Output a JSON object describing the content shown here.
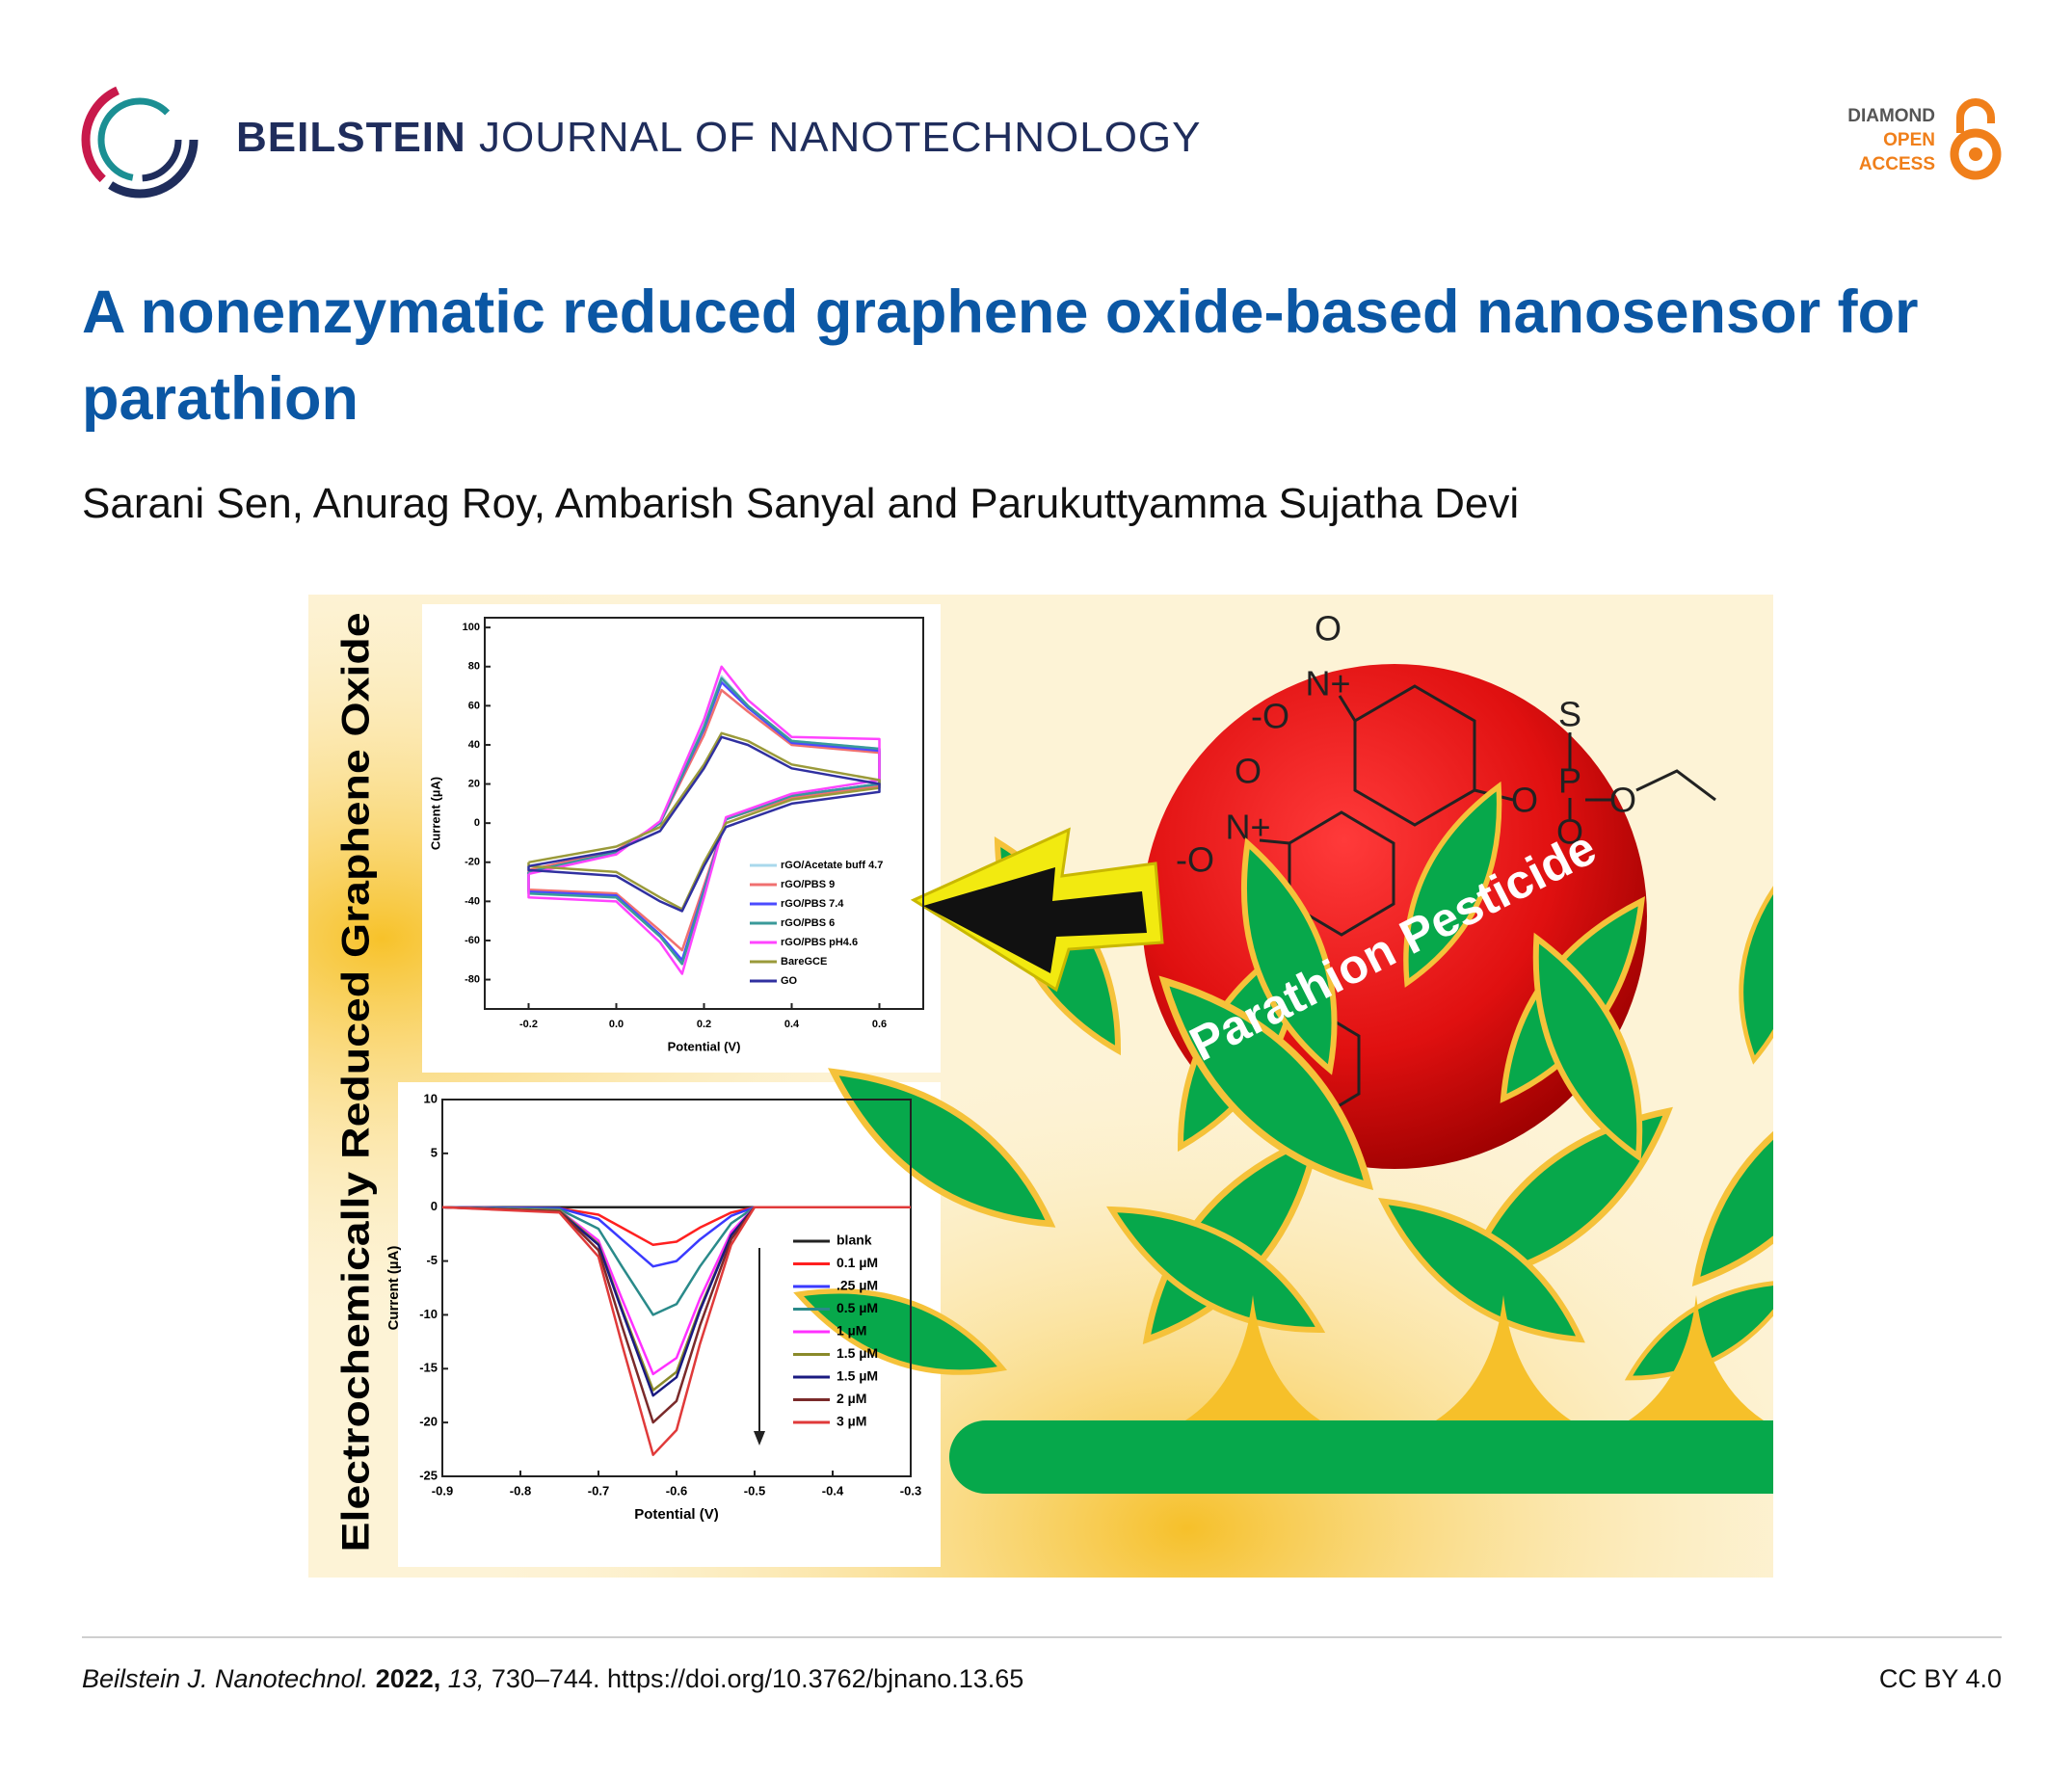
{
  "header": {
    "journal_bold": "BEILSTEIN",
    "journal_rest": "JOURNAL OF NANOTECHNOLOGY",
    "badge": [
      "DIAMOND",
      "OPEN",
      "ACCESS"
    ]
  },
  "title": "A nonenzymatic reduced graphene oxide-based nanosensor for parathion",
  "authors": "Sarani Sen, Anurag Roy, Ambarish Sanyal and Parukuttyamma Sujatha Devi",
  "graphic": {
    "side_label": "Electrochemically Reduced Graphene Oxide",
    "sphere_label": "Parathion Pesticide",
    "molecule_atoms": [
      "O",
      "N+",
      "-O",
      "S",
      "P",
      "O",
      "O",
      "O",
      "O",
      "N+",
      "-O"
    ]
  },
  "chart_data": [
    {
      "type": "line",
      "x_label": "Potential (V)",
      "y_label": "Current (µA)",
      "x": [
        -0.2,
        0,
        0.1,
        0.2,
        0.24,
        0.3,
        0.4,
        0.6,
        0.6,
        0.4,
        0.25,
        0.2,
        0.15,
        0.1,
        0,
        -0.2,
        -0.2
      ],
      "series": [
        {
          "name": "rGO/Acetate buff 4.7",
          "color": "#a9d8ec",
          "values": [
            -25,
            -15,
            0,
            50,
            75,
            60,
            42,
            38,
            20,
            14,
            2,
            -35,
            -72,
            -58,
            -38,
            -35,
            -25
          ]
        },
        {
          "name": "rGO/PBS 9",
          "color": "#f07070",
          "values": [
            -24,
            -14,
            0,
            45,
            68,
            57,
            40,
            36,
            19,
            13,
            2,
            -32,
            -65,
            -55,
            -36,
            -34,
            -24
          ]
        },
        {
          "name": "rGO/PBS 7.4",
          "color": "#4b4bff",
          "values": [
            -25,
            -15,
            0,
            48,
            72,
            59,
            41,
            37,
            20,
            14,
            2,
            -34,
            -70,
            -57,
            -37,
            -35,
            -25
          ]
        },
        {
          "name": "rGO/PBS 6",
          "color": "#3a9a9a",
          "values": [
            -25,
            -15,
            0,
            49,
            74,
            60,
            42,
            38,
            20,
            14,
            2,
            -35,
            -72,
            -58,
            -38,
            -36,
            -25
          ]
        },
        {
          "name": "rGO/PBS pH4.6",
          "color": "#ff44ff",
          "values": [
            -26,
            -16,
            1,
            53,
            80,
            63,
            44,
            43,
            22,
            15,
            3,
            -38,
            -77,
            -61,
            -40,
            -38,
            -26
          ]
        },
        {
          "name": "BareGCE",
          "color": "#9a9a3a",
          "values": [
            -20,
            -12,
            -2,
            30,
            46,
            42,
            30,
            22,
            18,
            12,
            0,
            -20,
            -44,
            -38,
            -25,
            -22,
            -20
          ]
        },
        {
          "name": "GO",
          "color": "#3030a0",
          "values": [
            -22,
            -14,
            -4,
            28,
            44,
            40,
            28,
            20,
            16,
            10,
            -2,
            -22,
            -45,
            -40,
            -27,
            -24,
            -22
          ]
        }
      ],
      "xlim": [
        -0.3,
        0.7
      ],
      "ylim": [
        -95,
        105
      ],
      "xticks": [
        -0.2,
        {
          "value": 0,
          "label": "0.0"
        },
        0.2,
        0.4,
        0.6
      ],
      "yticks": [
        -80,
        -60,
        -40,
        -20,
        0,
        20,
        40,
        60,
        80,
        100
      ]
    },
    {
      "type": "line",
      "x_label": "Potential (V)",
      "y_label": "Current (µA)",
      "x": [
        -0.9,
        -0.75,
        -0.7,
        -0.67,
        -0.63,
        -0.6,
        -0.57,
        -0.53,
        -0.5,
        -0.3
      ],
      "series": [
        {
          "name": "blank",
          "color": "#222222",
          "values": [
            0,
            0,
            0,
            0,
            0,
            0,
            0,
            0,
            0,
            0
          ]
        },
        {
          "name": "0.1 µM",
          "color": "#ff2020",
          "values": [
            0,
            -0.1,
            -0.7,
            -1.9,
            -3.5,
            -3.2,
            -1.9,
            -0.5,
            0,
            0
          ]
        },
        {
          "name": ".25 µM",
          "color": "#3a3aff",
          "values": [
            0,
            -0.1,
            -1.1,
            -3,
            -5.5,
            -5,
            -3,
            -0.8,
            0,
            0
          ]
        },
        {
          "name": "0.5 µM",
          "color": "#2a8a8a",
          "values": [
            0,
            -0.2,
            -2,
            -5.5,
            -10,
            -9,
            -5.5,
            -1.5,
            0,
            0
          ]
        },
        {
          "name": "1 µM",
          "color": "#ff30ff",
          "values": [
            0,
            -0.3,
            -3.1,
            -8.5,
            -15.5,
            -14,
            -8.5,
            -2.3,
            0,
            0
          ]
        },
        {
          "name": "1.5 µM",
          "color": "#8a8a2a",
          "values": [
            0,
            -0.3,
            -3.4,
            -9.4,
            -17,
            -15.3,
            -9.4,
            -2.6,
            0,
            0
          ]
        },
        {
          "name": "1.5 µM",
          "color": "#1a1a80",
          "values": [
            0,
            -0.4,
            -3.5,
            -9.6,
            -17.5,
            -15.8,
            -9.6,
            -2.6,
            0,
            0
          ]
        },
        {
          "name": "2 µM",
          "color": "#7a2a2a",
          "values": [
            0,
            -0.4,
            -4,
            -11,
            -20,
            -18,
            -11,
            -3,
            0,
            0
          ]
        },
        {
          "name": "3 µM",
          "color": "#e03a3a",
          "values": [
            0,
            -0.5,
            -4.6,
            -12.7,
            -23,
            -20.7,
            -12.7,
            -3.5,
            0,
            0
          ]
        }
      ],
      "xlim": [
        -0.9,
        -0.3
      ],
      "ylim": [
        -25,
        10
      ],
      "xticks": [
        -0.9,
        -0.8,
        -0.7,
        -0.6,
        -0.5,
        -0.4,
        -0.3
      ],
      "yticks": [
        -25,
        -20,
        -15,
        -10,
        -5,
        0,
        5,
        10
      ]
    }
  ],
  "footer": {
    "journal": "Beilstein J. Nanotechnol.",
    "year": "2022,",
    "volume": "13,",
    "pages_doi": "730–744. https://doi.org/10.3762/bjnano.13.65",
    "license": "CC BY 4.0"
  }
}
